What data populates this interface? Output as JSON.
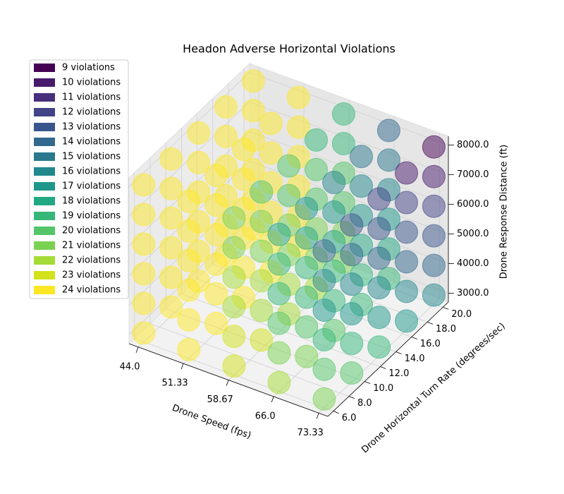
{
  "chart_data": {
    "type": "scatter3d",
    "title": "Headon Adverse Horizontal Violations",
    "xlabel": "Drone Speed (fps)",
    "ylabel": "Drone Horizontal Turn Rate (degrees/sec)",
    "zlabel": "Drone Response Distance (ft)",
    "x": [
      44.0,
      51.33,
      58.67,
      66.0,
      73.33
    ],
    "y": [
      6.0,
      9.5,
      13.0,
      16.5,
      20.0
    ],
    "z": [
      3000,
      4000,
      5000,
      6000,
      7000,
      8000
    ],
    "values": [
      [
        [
          24,
          24,
          24,
          24,
          24,
          24
        ],
        [
          24,
          24,
          24,
          24,
          24,
          24
        ],
        [
          24,
          24,
          24,
          24,
          24,
          24
        ],
        [
          24,
          24,
          24,
          24,
          24,
          24
        ],
        [
          24,
          24,
          24,
          24,
          24,
          24
        ]
      ],
      [
        [
          24,
          24,
          24,
          24,
          24,
          24
        ],
        [
          24,
          24,
          24,
          24,
          24,
          24
        ],
        [
          24,
          24,
          24,
          24,
          24,
          24
        ],
        [
          24,
          24,
          24,
          24,
          24,
          24
        ],
        [
          24,
          24,
          24,
          24,
          24,
          24
        ]
      ],
      [
        [
          23,
          23,
          22,
          22,
          21,
          21
        ],
        [
          23,
          22,
          22,
          21,
          21,
          20
        ],
        [
          22,
          22,
          21,
          21,
          20,
          20
        ],
        [
          22,
          21,
          21,
          20,
          20,
          19
        ],
        [
          21,
          21,
          20,
          20,
          19,
          19
        ]
      ],
      [
        [
          22,
          21,
          20,
          19,
          19,
          18
        ],
        [
          21,
          20,
          19,
          19,
          18,
          17
        ],
        [
          20,
          19,
          19,
          18,
          17,
          16
        ],
        [
          19,
          19,
          18,
          17,
          16,
          15
        ],
        [
          19,
          18,
          17,
          16,
          15,
          14
        ]
      ],
      [
        [
          21,
          20,
          19,
          17,
          16,
          14
        ],
        [
          20,
          19,
          17,
          16,
          14,
          13
        ],
        [
          19,
          17,
          16,
          14,
          13,
          12
        ],
        [
          17,
          16,
          14,
          13,
          12,
          10
        ],
        [
          16,
          14,
          13,
          12,
          10,
          9
        ]
      ]
    ],
    "clim": [
      9,
      24
    ],
    "xlim": [
      42.5,
      74.8
    ],
    "ylim": [
      5.3,
      20.7
    ],
    "zlim": [
      2700,
      8300
    ],
    "xticks": [
      {
        "value": 44,
        "label": "44.0"
      },
      51.33,
      58.67,
      {
        "value": 66,
        "label": "66.0"
      },
      73.33
    ],
    "yticks": [
      {
        "value": 6,
        "label": "6.0"
      },
      {
        "value": 8,
        "label": "8.0"
      },
      {
        "value": 10,
        "label": "10.0"
      },
      {
        "value": 12,
        "label": "12.0"
      },
      {
        "value": 14,
        "label": "14.0"
      },
      {
        "value": 16,
        "label": "16.0"
      },
      {
        "value": 18,
        "label": "18.0"
      },
      {
        "value": 20,
        "label": "20.0"
      }
    ],
    "zticks": [
      {
        "value": 3000,
        "label": "3000.0"
      },
      {
        "value": 4000,
        "label": "4000.0"
      },
      {
        "value": 5000,
        "label": "5000.0"
      },
      {
        "value": 6000,
        "label": "6000.0"
      },
      {
        "value": 7000,
        "label": "7000.0"
      },
      {
        "value": 8000,
        "label": "8000.0"
      }
    ],
    "grid": true,
    "legend_position": "upper left",
    "legend": [
      {
        "label": "9 violations",
        "color": "#440154"
      },
      {
        "label": "10 violations",
        "color": "#481a6c"
      },
      {
        "label": "11 violations",
        "color": "#472f7d"
      },
      {
        "label": "12 violations",
        "color": "#414487"
      },
      {
        "label": "13 violations",
        "color": "#39568c"
      },
      {
        "label": "14 violations",
        "color": "#31688e"
      },
      {
        "label": "15 violations",
        "color": "#2a788e"
      },
      {
        "label": "16 violations",
        "color": "#23888e"
      },
      {
        "label": "17 violations",
        "color": "#1f988b"
      },
      {
        "label": "18 violations",
        "color": "#22a884"
      },
      {
        "label": "19 violations",
        "color": "#35b779"
      },
      {
        "label": "20 violations",
        "color": "#54c568"
      },
      {
        "label": "21 violations",
        "color": "#7ad151"
      },
      {
        "label": "22 violations",
        "color": "#a5db36"
      },
      {
        "label": "23 violations",
        "color": "#d2e21b"
      },
      {
        "label": "24 violations",
        "color": "#fde725"
      }
    ]
  }
}
